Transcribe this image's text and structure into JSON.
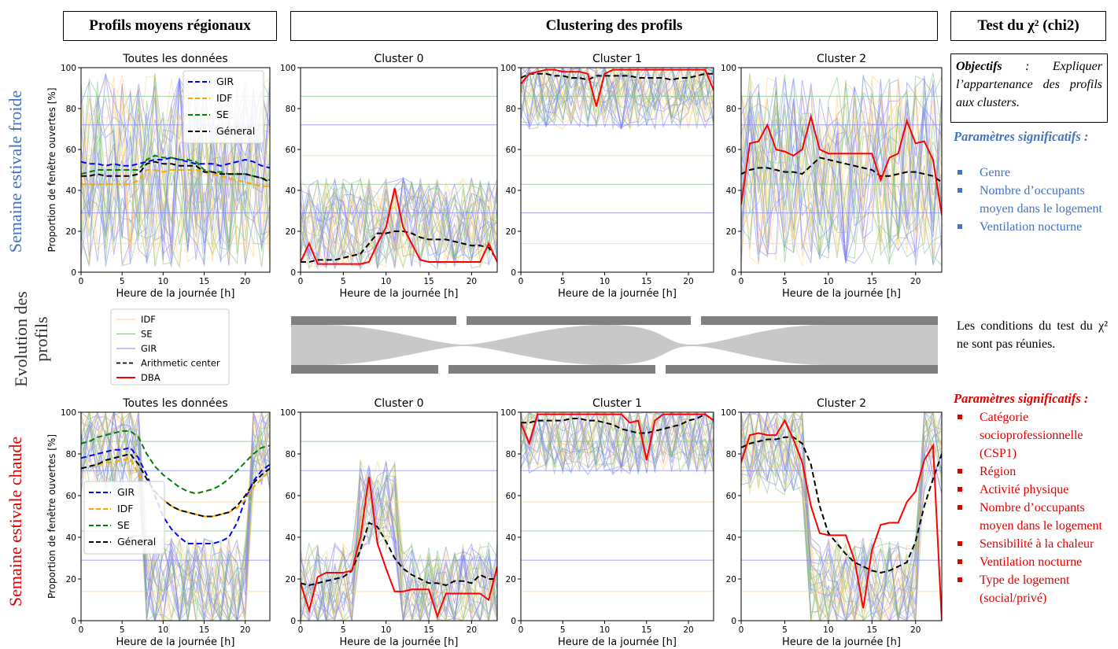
{
  "headers": {
    "regional": "Profils moyens régionaux",
    "clustering": "Clustering des profils",
    "chi2": "Test du χ² (chi2)"
  },
  "row_labels": {
    "cold": "Semaine estivale froide",
    "evolution_line1": "Evolution des",
    "evolution_line2": "profils",
    "hot": "Semaine estivale chaude"
  },
  "right_panel": {
    "objectives_title": "Objectifs",
    "objectives_text": " : Expliquer l’appartenance des profils aux clusters.",
    "cold_params_title": "Paramètres significatifs :",
    "cold_params": [
      "Genre",
      "Nombre d’occupants moyen dans le logement",
      "Ventilation nocturne"
    ],
    "conditions_text": "Les conditions du test du χ² ne sont pas réunies.",
    "hot_params_title": "Paramètres significatifs :",
    "hot_params": [
      "Catégorie socioprofessionnelle (CSP1)",
      "Région",
      "Activité physique",
      "Nombre d’occupants moyen dans le logement",
      "Sensibilité à la chaleur",
      "Ventilation nocturne",
      "Type de logement (social/privé)"
    ]
  },
  "cluster_legend": [
    "IDF",
    "SE",
    "GIR",
    "Arithmetic center",
    "DBA"
  ],
  "colors": {
    "GIR": "#0000ff",
    "IDF": "#ffa500",
    "SE": "#008000",
    "general": "#000000",
    "DBA": "#ff0000",
    "thin_IDF": "#ffcf80",
    "thin_SE": "#7fbf7f",
    "thin_GIR": "#8080ff",
    "cold_label": "#4472c4",
    "hot_label": "#e00000",
    "sankey_bar": "#7f7f7f",
    "sankey_band": "#c8c8c8"
  },
  "chart_data": [
    {
      "id": "cold-all",
      "type": "line",
      "title": "Toutes les données",
      "xlabel": "Heure de la journée [h]",
      "ylabel": "Proportion de fenêtre ouvertes [%]",
      "xlim": [
        0,
        23
      ],
      "ylim": [
        0,
        100
      ],
      "xticks": [
        0,
        5,
        10,
        15,
        20
      ],
      "yticks": [
        0,
        20,
        40,
        60,
        80,
        100
      ],
      "legend": [
        "GIR",
        "IDF",
        "SE",
        "Géneral"
      ],
      "series": [
        {
          "name": "GIR",
          "values": [
            54,
            53,
            53,
            52,
            53,
            52,
            52,
            53,
            54,
            55,
            55,
            56,
            55,
            54,
            53,
            53,
            53,
            52,
            53,
            54,
            55,
            54,
            52,
            51
          ]
        },
        {
          "name": "IDF",
          "values": [
            43,
            43,
            43,
            43,
            43,
            43,
            43,
            45,
            50,
            50,
            49,
            50,
            50,
            50,
            50,
            49,
            48,
            47,
            46,
            45,
            44,
            43,
            42,
            42
          ]
        },
        {
          "name": "SE",
          "values": [
            48,
            49,
            50,
            50,
            50,
            50,
            50,
            50,
            55,
            57,
            56,
            56,
            55,
            55,
            54,
            50,
            49,
            49,
            48,
            48,
            48,
            47,
            46,
            45
          ]
        },
        {
          "name": "Géneral",
          "values": [
            47,
            47,
            48,
            47,
            47,
            47,
            47,
            48,
            53,
            54,
            53,
            53,
            52,
            52,
            52,
            49,
            49,
            48,
            48,
            48,
            48,
            47,
            46,
            44
          ]
        }
      ]
    },
    {
      "id": "cold-c0",
      "type": "line",
      "title": "Cluster 0",
      "xlabel": "Heure de la journée [h]",
      "ylabel": "",
      "xlim": [
        0,
        23
      ],
      "ylim": [
        0,
        100
      ],
      "xticks": [
        0,
        5,
        10,
        15,
        20
      ],
      "yticks": [
        0,
        20,
        40,
        60,
        80,
        100
      ],
      "series": [
        {
          "name": "Arithmetic center",
          "values": [
            5,
            5,
            6,
            6,
            6,
            7,
            8,
            9,
            14,
            19,
            19,
            20,
            20,
            19,
            17,
            16,
            16,
            16,
            15,
            14,
            13,
            13,
            12,
            6
          ]
        },
        {
          "name": "DBA",
          "values": [
            5,
            14,
            4,
            4,
            4,
            4,
            4,
            4,
            5,
            14,
            22,
            41,
            22,
            14,
            6,
            5,
            5,
            5,
            5,
            5,
            5,
            5,
            14,
            5
          ]
        }
      ]
    },
    {
      "id": "cold-c1",
      "type": "line",
      "title": "Cluster 1",
      "xlabel": "Heure de la journée [h]",
      "ylabel": "",
      "xlim": [
        0,
        23
      ],
      "ylim": [
        0,
        100
      ],
      "xticks": [
        0,
        5,
        10,
        15,
        20
      ],
      "yticks": [
        0,
        20,
        40,
        60,
        80,
        100
      ],
      "series": [
        {
          "name": "Arithmetic center",
          "values": [
            95,
            97,
            97,
            97,
            96,
            96,
            95,
            95,
            94,
            96,
            96,
            96,
            96,
            96,
            95,
            95,
            95,
            95,
            94,
            95,
            95,
            96,
            97,
            97
          ]
        },
        {
          "name": "DBA",
          "values": [
            92,
            97,
            98,
            99,
            99,
            98,
            98,
            98,
            97,
            81,
            97,
            99,
            99,
            99,
            99,
            99,
            99,
            99,
            99,
            99,
            99,
            99,
            99,
            89
          ]
        }
      ]
    },
    {
      "id": "cold-c2",
      "type": "line",
      "title": "Cluster 2",
      "xlabel": "Heure de la journée [h]",
      "ylabel": "",
      "xlim": [
        0,
        23
      ],
      "ylim": [
        0,
        100
      ],
      "xticks": [
        0,
        5,
        10,
        15,
        20
      ],
      "yticks": [
        0,
        20,
        40,
        60,
        80,
        100
      ],
      "series": [
        {
          "name": "Arithmetic center",
          "values": [
            48,
            50,
            51,
            51,
            50,
            49,
            49,
            48,
            52,
            56,
            55,
            54,
            53,
            52,
            51,
            50,
            47,
            47,
            48,
            49,
            49,
            48,
            47,
            44
          ]
        },
        {
          "name": "DBA",
          "values": [
            33,
            63,
            64,
            72,
            60,
            59,
            57,
            60,
            76,
            60,
            58,
            58,
            58,
            58,
            58,
            58,
            45,
            56,
            58,
            74,
            63,
            64,
            55,
            28
          ]
        }
      ]
    },
    {
      "id": "hot-all",
      "type": "line",
      "title": "Toutes les données",
      "xlabel": "Heure de la journée [h]",
      "ylabel": "Proportion de fenêtre ouvertes [%]",
      "xlim": [
        0,
        23
      ],
      "ylim": [
        0,
        100
      ],
      "xticks": [
        0,
        5,
        10,
        15,
        20
      ],
      "yticks": [
        0,
        20,
        40,
        60,
        80,
        100
      ],
      "legend": [
        "GIR",
        "IDF",
        "SE",
        "Géneral"
      ],
      "series": [
        {
          "name": "GIR",
          "values": [
            78,
            79,
            80,
            81,
            82,
            82,
            83,
            78,
            70,
            60,
            50,
            44,
            40,
            37,
            37,
            37,
            37,
            38,
            40,
            47,
            58,
            67,
            72,
            75
          ]
        },
        {
          "name": "IDF",
          "values": [
            73,
            74,
            75,
            76,
            76,
            77,
            78,
            70,
            66,
            62,
            58,
            55,
            53,
            52,
            51,
            50,
            50,
            51,
            52,
            54,
            58,
            64,
            68,
            72
          ]
        },
        {
          "name": "SE",
          "values": [
            85,
            86,
            88,
            89,
            90,
            91,
            91,
            88,
            80,
            74,
            70,
            67,
            64,
            62,
            61,
            62,
            63,
            65,
            68,
            72,
            76,
            80,
            83,
            84
          ]
        },
        {
          "name": "Géneral",
          "values": [
            73,
            74,
            75,
            77,
            78,
            79,
            80,
            75,
            68,
            62,
            58,
            55,
            53,
            52,
            51,
            50,
            50,
            51,
            52,
            55,
            60,
            66,
            70,
            73
          ]
        }
      ]
    },
    {
      "id": "hot-c0",
      "type": "line",
      "title": "Cluster 0",
      "xlabel": "Heure de la journée [h]",
      "ylabel": "",
      "xlim": [
        0,
        23
      ],
      "ylim": [
        0,
        100
      ],
      "xticks": [
        0,
        5,
        10,
        15,
        20
      ],
      "yticks": [
        0,
        20,
        40,
        60,
        80,
        100
      ],
      "series": [
        {
          "name": "Arithmetic center",
          "values": [
            18,
            17,
            18,
            19,
            20,
            21,
            24,
            34,
            47,
            45,
            38,
            30,
            25,
            22,
            20,
            18,
            18,
            17,
            19,
            19,
            18,
            22,
            20,
            20
          ]
        },
        {
          "name": "DBA",
          "values": [
            18,
            5,
            21,
            23,
            23,
            23,
            24,
            40,
            69,
            37,
            25,
            14,
            14,
            15,
            15,
            15,
            2,
            13,
            13,
            13,
            13,
            13,
            10,
            26
          ]
        }
      ]
    },
    {
      "id": "hot-c1",
      "type": "line",
      "title": "Cluster 1",
      "xlabel": "Heure de la journée [h]",
      "ylabel": "",
      "xlim": [
        0,
        23
      ],
      "ylim": [
        0,
        100
      ],
      "xticks": [
        0,
        5,
        10,
        15,
        20
      ],
      "yticks": [
        0,
        20,
        40,
        60,
        80,
        100
      ],
      "series": [
        {
          "name": "Arithmetic center",
          "values": [
            95,
            95,
            96,
            96,
            96,
            96,
            97,
            97,
            96,
            96,
            95,
            94,
            92,
            91,
            90,
            90,
            91,
            92,
            93,
            94,
            96,
            97,
            99,
            96
          ]
        },
        {
          "name": "DBA",
          "values": [
            95,
            85,
            99,
            99,
            99,
            99,
            99,
            99,
            99,
            99,
            99,
            99,
            99,
            95,
            96,
            77,
            96,
            99,
            99,
            99,
            99,
            99,
            99,
            96
          ]
        }
      ]
    },
    {
      "id": "hot-c2",
      "type": "line",
      "title": "Cluster 2",
      "xlabel": "Heure de la journée [h]",
      "ylabel": "",
      "xlim": [
        0,
        23
      ],
      "ylim": [
        0,
        100
      ],
      "xticks": [
        0,
        5,
        10,
        15,
        20
      ],
      "yticks": [
        0,
        20,
        40,
        60,
        80,
        100
      ],
      "series": [
        {
          "name": "Arithmetic center",
          "values": [
            83,
            85,
            86,
            87,
            87,
            88,
            88,
            85,
            75,
            55,
            42,
            37,
            32,
            28,
            26,
            24,
            23,
            24,
            26,
            28,
            38,
            55,
            68,
            80
          ]
        },
        {
          "name": "DBA",
          "values": [
            76,
            89,
            90,
            89,
            89,
            96,
            87,
            76,
            55,
            42,
            41,
            41,
            41,
            29,
            6,
            34,
            46,
            47,
            47,
            57,
            62,
            77,
            84,
            0
          ]
        }
      ]
    }
  ]
}
